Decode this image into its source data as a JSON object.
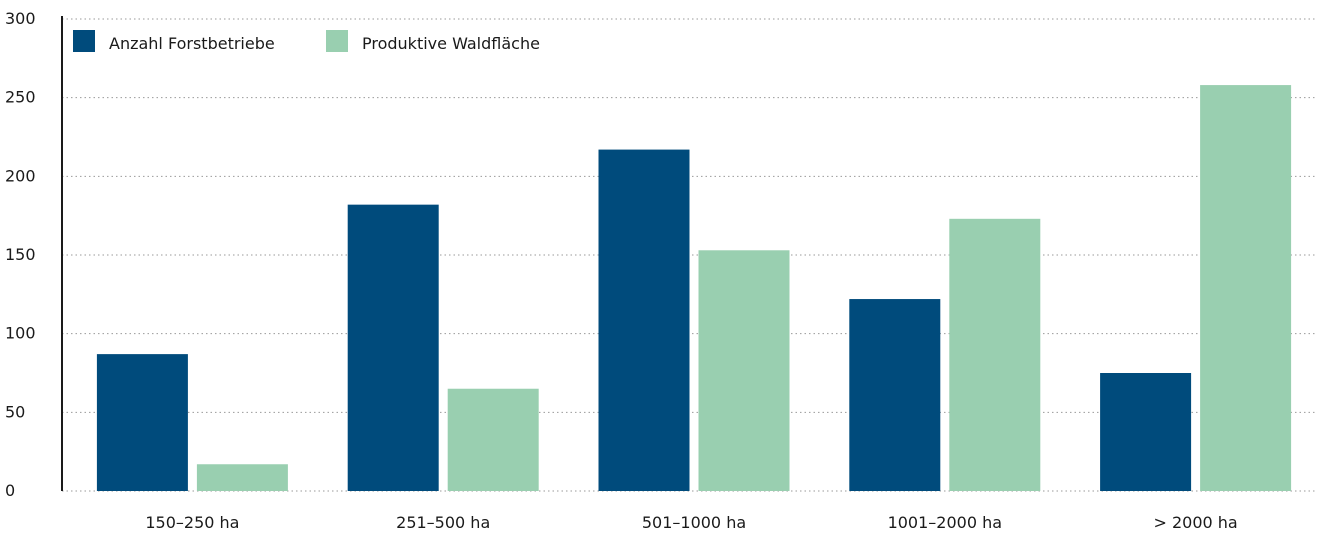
{
  "chart_data": {
    "type": "bar",
    "title": "",
    "xlabel": "",
    "ylabel": "",
    "ylim": [
      0,
      300
    ],
    "yticks": [
      0,
      50,
      100,
      150,
      200,
      250,
      300
    ],
    "grid": true,
    "legend_position": "top-left",
    "categories": [
      "150–250 ha",
      "251–500 ha",
      "501–1000 ha",
      "1001–2000 ha",
      "> 2000 ha"
    ],
    "series": [
      {
        "name": "Anzahl Forstbetriebe",
        "color": "#004b7c",
        "values": [
          87,
          182,
          217,
          122,
          75
        ]
      },
      {
        "name": "Produktive Waldfläche",
        "color": "#99cfb0",
        "values": [
          17,
          65,
          153,
          173,
          258
        ]
      }
    ]
  }
}
